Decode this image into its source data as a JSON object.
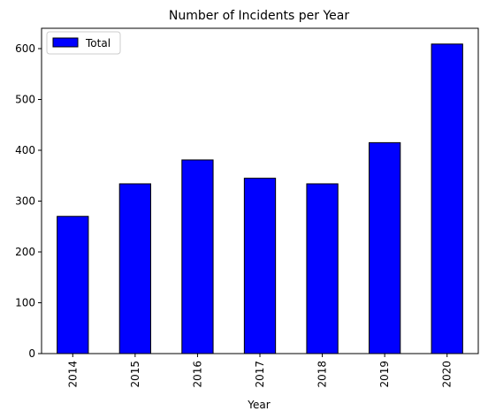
{
  "chart_data": {
    "type": "bar",
    "title": "Number of Incidents per Year",
    "xlabel": "Year",
    "ylabel": "",
    "categories": [
      "2014",
      "2015",
      "2016",
      "2017",
      "2018",
      "2019",
      "2020"
    ],
    "series": [
      {
        "name": "Total",
        "values": [
          270,
          334,
          381,
          345,
          334,
          415,
          609
        ],
        "color": "#0000ff"
      }
    ],
    "ylim": [
      0,
      640
    ],
    "yticks": [
      0,
      100,
      200,
      300,
      400,
      500,
      600
    ],
    "grid": false,
    "legend": {
      "position": "top-left",
      "entries": [
        "Total"
      ]
    },
    "bar_edge_color": "#000000"
  }
}
